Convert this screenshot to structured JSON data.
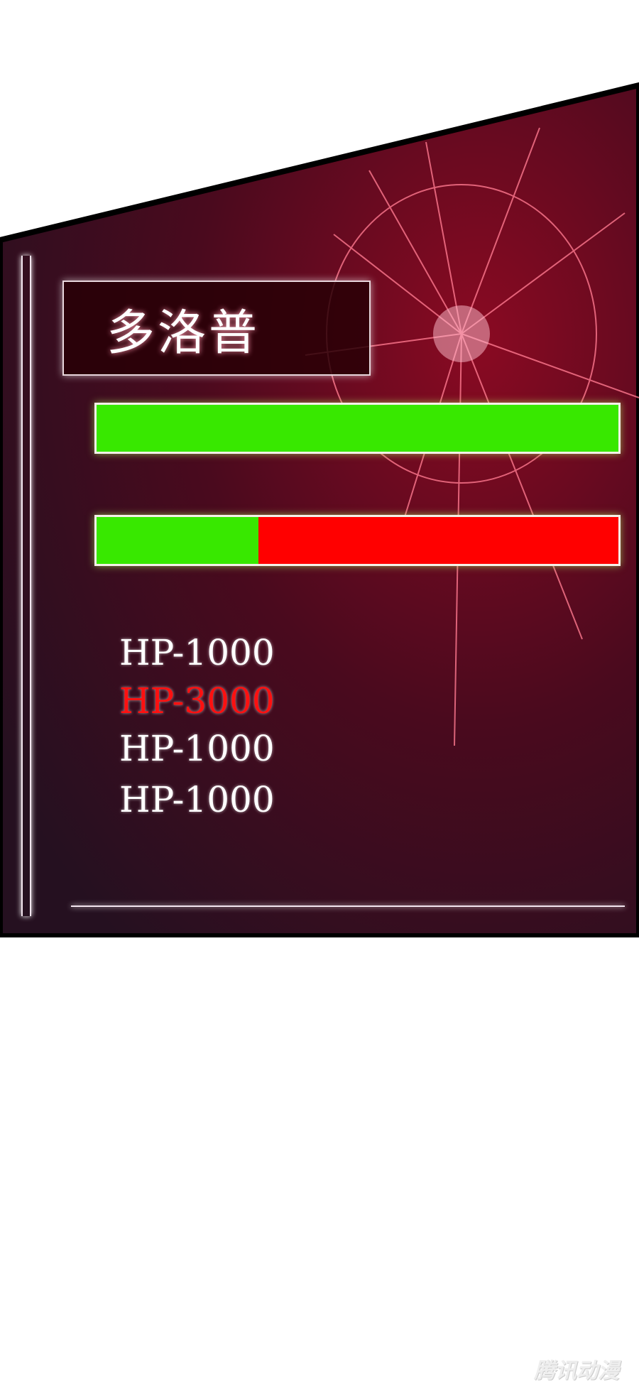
{
  "character": {
    "name": "多洛普"
  },
  "bars": [
    {
      "fill_fraction": 1.0,
      "fill_color": "#38e800",
      "empty_color": "#ff0000"
    },
    {
      "fill_fraction": 0.31,
      "fill_color": "#38e800",
      "empty_color": "#ff0000"
    }
  ],
  "hp_log": [
    {
      "text": "HP-1000",
      "color": "#ffffff"
    },
    {
      "text": "HP-3000",
      "color": "#ff1010"
    },
    {
      "text": "HP-1000",
      "color": "#ffffff"
    },
    {
      "text": "HP-1000",
      "color": "#ffffff"
    }
  ],
  "watermark": "腾讯动漫"
}
